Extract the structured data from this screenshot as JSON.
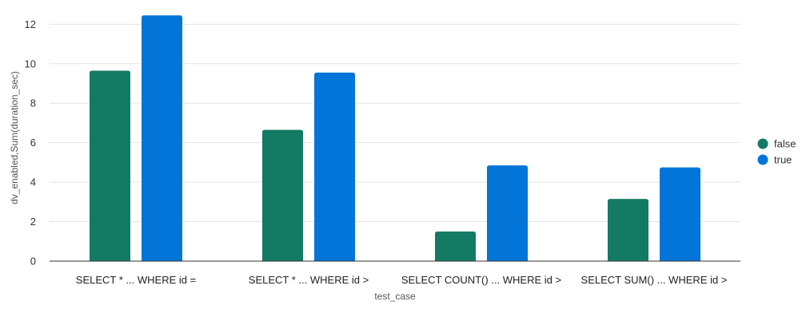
{
  "chart_data": {
    "type": "bar",
    "title": "",
    "xlabel": "test_case",
    "ylabel": "dv_enabled,Sum(duration_sec)",
    "categories": [
      "SELECT * ... WHERE id =",
      "SELECT * ... WHERE id >",
      "SELECT COUNT() ... WHERE id >",
      "SELECT SUM() ... WHERE id >"
    ],
    "series": [
      {
        "name": "false",
        "color": "#137a64",
        "values": [
          9.65,
          6.65,
          1.5,
          3.15
        ]
      },
      {
        "name": "true",
        "color": "#0375d8",
        "values": [
          12.45,
          9.55,
          4.85,
          4.75
        ]
      }
    ],
    "ylim": [
      0,
      12.5
    ],
    "yticks": [
      0,
      2,
      4,
      6,
      8,
      10,
      12
    ],
    "grid": true,
    "legend_position": "right"
  }
}
